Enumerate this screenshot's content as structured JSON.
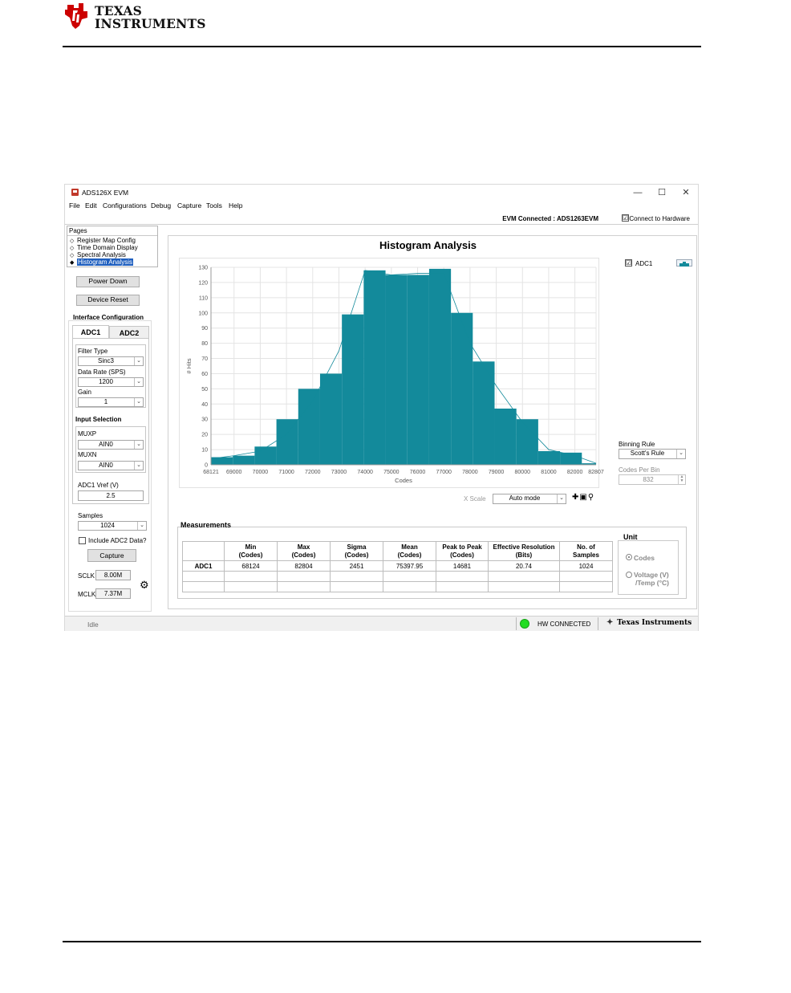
{
  "doc": {
    "brand_line1": "TEXAS",
    "brand_line2": "INSTRUMENTS",
    "brand_color": "#cc0000"
  },
  "window": {
    "title": "ADS126X EVM",
    "minimize": "—",
    "maximize": "☐",
    "close": "✕"
  },
  "menu": [
    "File",
    "Edit",
    "Configurations",
    "Debug",
    "Capture",
    "Tools",
    "Help"
  ],
  "status_top": {
    "evm_connected": "EVM Connected : ADS1263EVM",
    "connect_to_hardware": "Connect to Hardware",
    "connect_checked": "☑"
  },
  "pages": {
    "title": "Pages",
    "items": [
      {
        "label": "Register Map Config",
        "active": false
      },
      {
        "label": "Time Domain Display",
        "active": false
      },
      {
        "label": "Spectral Analysis",
        "active": false
      },
      {
        "label": "Histogram Analysis",
        "active": true
      }
    ]
  },
  "left": {
    "power_down": "Power Down",
    "device_reset": "Device Reset",
    "interface_config": "Interface Configuration",
    "tab_adc1": "ADC1",
    "tab_adc2": "ADC2",
    "filter_type_label": "Filter Type",
    "filter_type_value": "Sinc3",
    "data_rate_label": "Data Rate (SPS)",
    "data_rate_value": "1200",
    "gain_label": "Gain",
    "gain_value": "1",
    "input_selection": "Input Selection",
    "muxp_label": "MUXP",
    "muxp_value": "AIN0",
    "muxn_label": "MUXN",
    "muxn_value": "AIN0",
    "vref_label": "ADC1 Vref (V)",
    "vref_value": "2.5",
    "samples_label": "Samples",
    "samples_value": "1024",
    "include_adc2": "Include ADC2 Data?",
    "capture": "Capture",
    "sclk_label": "SCLK",
    "sclk_value": "8.00M",
    "mclk_label": "MCLK",
    "mclk_value": "7.37M"
  },
  "right": {
    "legend_label": "ADC1",
    "legend_checked": "☑",
    "binning_label": "Binning Rule",
    "binning_value": "Scott's Rule",
    "codes_per_bin_label": "Codes Per Bin",
    "codes_per_bin_value": "832",
    "xscale_label": "X Scale ",
    "xscale_value": "Auto mode",
    "tool_icons": "✚▣⚲"
  },
  "measurements": {
    "title": "Measurements",
    "headers": [
      [
        "",
        ""
      ],
      [
        "Min",
        "(Codes)"
      ],
      [
        "Max",
        "(Codes)"
      ],
      [
        "Sigma",
        "(Codes)"
      ],
      [
        "Mean",
        "(Codes)"
      ],
      [
        "Peak to Peak",
        "(Codes)"
      ],
      [
        "Effective Resolution",
        "(Bits)"
      ],
      [
        "No. of",
        "Samples"
      ]
    ],
    "row": [
      "ADC1",
      "68124",
      "82804",
      "2451",
      "75397.95",
      "14681",
      "20.74",
      "1024"
    ]
  },
  "unit": {
    "title": "Unit",
    "codes": "Codes",
    "voltage_line1": "Voltage (V)",
    "voltage_line2": "/Temp (°C)"
  },
  "statusbar": {
    "idle": "Idle",
    "hw_connected": "HW CONNECTED",
    "ti_brand": "Texas Instruments"
  },
  "chart_data": {
    "type": "bar",
    "title": "Histogram Analysis",
    "xlabel": "Codes",
    "ylabel": "# Hits",
    "x_ticks": [
      68121,
      69000,
      70000,
      71000,
      72000,
      73000,
      74000,
      75000,
      76000,
      77000,
      78000,
      79000,
      80000,
      81000,
      82000,
      82807
    ],
    "xlim": [
      68121,
      82807
    ],
    "ylim": [
      0,
      130
    ],
    "y_ticks": [
      0,
      10,
      20,
      30,
      40,
      50,
      60,
      70,
      80,
      90,
      100,
      110,
      120,
      130
    ],
    "bin_edges": [
      68121,
      68953,
      69785,
      70617,
      71449,
      72281,
      73113,
      73945,
      74777,
      75609,
      76441,
      77273,
      78105,
      78937,
      79769,
      80601,
      81433,
      82265,
      82807
    ],
    "values": [
      5,
      6,
      12,
      30,
      50,
      60,
      99,
      128,
      125,
      125,
      129,
      100,
      68,
      37,
      30,
      9,
      8,
      1
    ],
    "fit_curve": [
      [
        68121,
        4
      ],
      [
        69000,
        6
      ],
      [
        70000,
        9
      ],
      [
        71000,
        20
      ],
      [
        72000,
        42
      ],
      [
        73000,
        75
      ],
      [
        74000,
        128
      ],
      [
        75000,
        125
      ],
      [
        76000,
        126
      ],
      [
        77000,
        126
      ],
      [
        78000,
        80
      ],
      [
        79000,
        52
      ],
      [
        80000,
        28
      ],
      [
        81000,
        10
      ],
      [
        82000,
        6
      ],
      [
        82807,
        1
      ]
    ],
    "bar_color": "#138a9b",
    "grid": true,
    "legend": "top-right"
  }
}
